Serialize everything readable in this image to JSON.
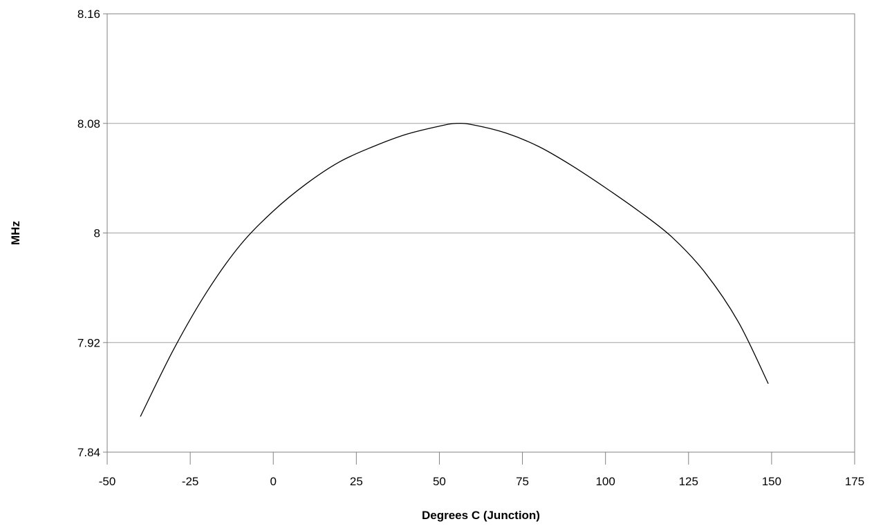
{
  "chart_data": {
    "type": "line",
    "title": "",
    "xlabel": "Degrees C (Junction)",
    "ylabel": "MHz",
    "xlim": [
      -50,
      175
    ],
    "ylim": [
      7.84,
      8.16
    ],
    "x_ticks": [
      -50,
      -25,
      0,
      25,
      50,
      75,
      100,
      125,
      150,
      175
    ],
    "x_tick_labels": [
      "-50",
      "-25",
      "0",
      "25",
      "50",
      "75",
      "100",
      "125",
      "150",
      "175"
    ],
    "y_ticks": [
      7.84,
      7.92,
      8.0,
      8.08,
      8.16
    ],
    "y_tick_labels": [
      "7.84",
      "7.92",
      "8",
      "8.08",
      "8.16"
    ],
    "grid": "horizontal",
    "legend": "none",
    "series": [
      {
        "color": "#000000",
        "x": [
          -40,
          -30,
          -20,
          -10,
          0,
          10,
          20,
          30,
          40,
          50,
          55,
          60,
          70,
          80,
          90,
          100,
          110,
          120,
          130,
          140,
          149
        ],
        "y": [
          7.866,
          7.915,
          7.957,
          7.991,
          8.016,
          8.036,
          8.052,
          8.063,
          8.072,
          8.078,
          8.08,
          8.079,
          8.073,
          8.063,
          8.049,
          8.033,
          8.016,
          7.997,
          7.971,
          7.935,
          7.89
        ]
      }
    ]
  }
}
